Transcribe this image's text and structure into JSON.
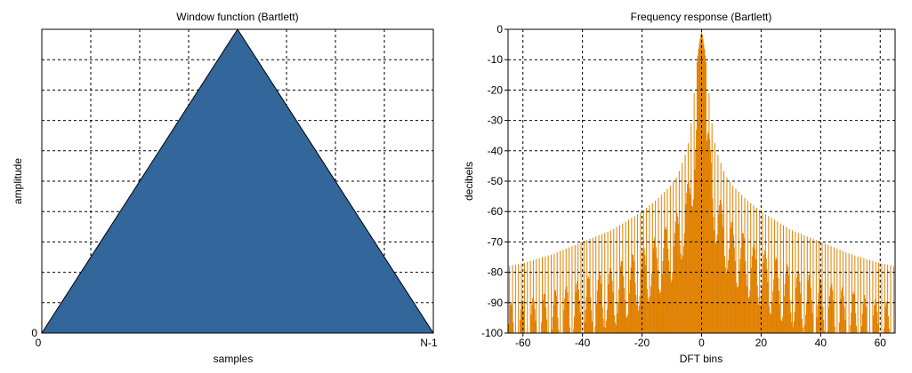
{
  "chart_data": [
    {
      "type": "area",
      "title": "Window function (Bartlett)",
      "xlabel": "samples",
      "ylabel": "amplitude",
      "x_tick_labels": [
        "0",
        "N-1"
      ],
      "y_tick_labels": [
        "0"
      ],
      "xlim": [
        0,
        1
      ],
      "ylim": [
        0,
        1
      ],
      "x": [
        0,
        0.5,
        1
      ],
      "y": [
        0,
        1,
        0
      ],
      "grid": true,
      "grid_divisions": {
        "x": 8,
        "y": 10
      },
      "fill_color": "#33669A",
      "edge_color": "#000000"
    },
    {
      "type": "bar",
      "title": "Frequency response (Bartlett)",
      "xlabel": "DFT bins",
      "ylabel": "decibels",
      "xlim": [
        -65,
        65
      ],
      "ylim": [
        -100,
        0
      ],
      "x_ticks": [
        -60,
        -40,
        -20,
        0,
        20,
        40,
        60
      ],
      "y_ticks": [
        0,
        -10,
        -20,
        -30,
        -40,
        -50,
        -60,
        -70,
        -80,
        -90,
        -100
      ],
      "grid": true,
      "color": "#E08000",
      "samples_per_bin": 4,
      "peak_envelope": [
        {
          "x": 0,
          "y": 0
        },
        {
          "x": 1,
          "y": -6.5
        },
        {
          "x": 2,
          "y": -15
        },
        {
          "x": 3,
          "y": -27
        },
        {
          "x": 4,
          "y": -35
        },
        {
          "x": 5,
          "y": -40
        },
        {
          "x": 8,
          "y": -48
        },
        {
          "x": 10,
          "y": -51
        },
        {
          "x": 15,
          "y": -56
        },
        {
          "x": 20,
          "y": -60
        },
        {
          "x": 30,
          "y": -66
        },
        {
          "x": 40,
          "y": -70
        },
        {
          "x": 50,
          "y": -74
        },
        {
          "x": 60,
          "y": -77
        },
        {
          "x": 65,
          "y": -78
        }
      ]
    }
  ]
}
